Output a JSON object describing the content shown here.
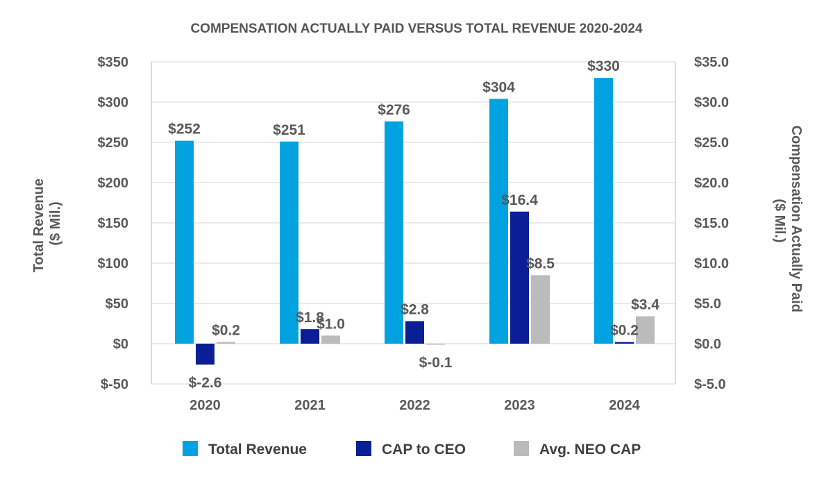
{
  "chart_data": {
    "type": "bar",
    "title": "COMPENSATION ACTUALLY PAID VERSUS TOTAL REVENUE 2020-2024",
    "categories": [
      "2020",
      "2021",
      "2022",
      "2023",
      "2024"
    ],
    "ylabel_left": [
      "Total Revenue",
      "($ Mil.)"
    ],
    "ylabel_right": [
      "Compensation Actually Paid",
      "($ Mil.)"
    ],
    "ylim_left": [
      -50,
      350
    ],
    "ylim_right": [
      -5,
      35
    ],
    "left_ticks": [
      "$-50",
      "$0",
      "$50",
      "$100",
      "$150",
      "$200",
      "$250",
      "$300",
      "$350"
    ],
    "right_ticks": [
      "$-5.0",
      "$0.0",
      "$5.0",
      "$10.0",
      "$15.0",
      "$20.0",
      "$25.0",
      "$30.0",
      "$35.0"
    ],
    "grid": true,
    "legend_position": "bottom",
    "series": [
      {
        "name": "Total Revenue",
        "axis": "left",
        "color": "#00A3E0",
        "values": [
          252,
          251,
          276,
          304,
          330
        ],
        "labels": [
          "$252",
          "$251",
          "$276",
          "$304",
          "$330"
        ]
      },
      {
        "name": "CAP to CEO",
        "axis": "right",
        "color": "#0A1F96",
        "values": [
          -2.6,
          1.8,
          2.8,
          16.4,
          0.2
        ],
        "labels": [
          "$-2.6",
          "$1.8",
          "$2.8",
          "$16.4",
          "$0.2"
        ]
      },
      {
        "name": "Avg. NEO CAP",
        "axis": "right",
        "color": "#BBBBBB",
        "values": [
          0.2,
          1.0,
          -0.1,
          8.5,
          3.4
        ],
        "labels": [
          "$0.2",
          "$1.0",
          "$-0.1",
          "$8.5",
          "$3.4"
        ]
      }
    ]
  }
}
